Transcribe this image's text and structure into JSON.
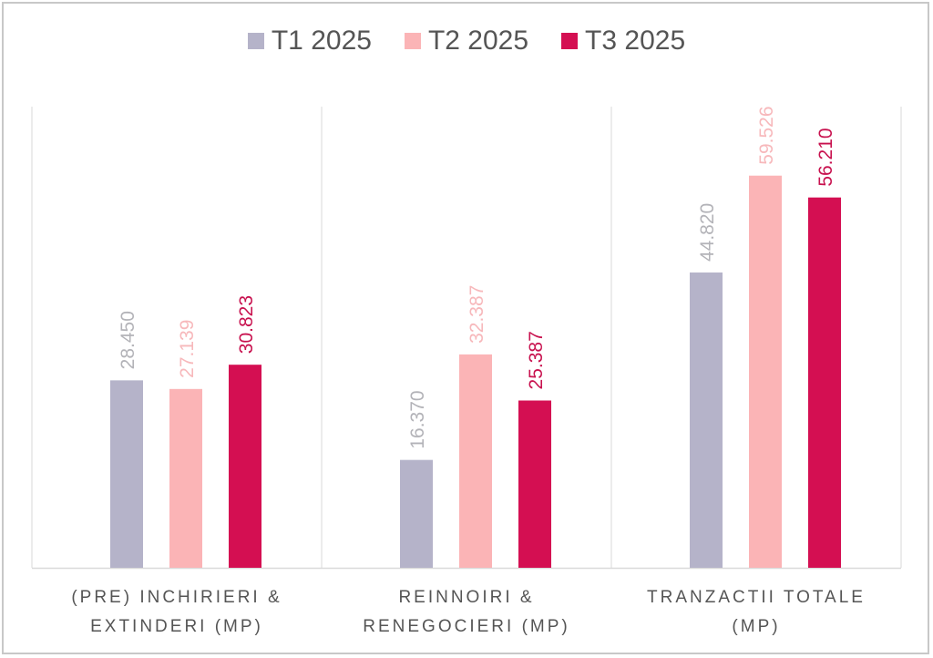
{
  "chart_data": {
    "type": "bar",
    "title": "",
    "xlabel": "",
    "ylabel": "",
    "ylim": [
      0,
      70
    ],
    "grid": false,
    "legend_position": "top-center",
    "categories": [
      "(PRE) INCHIRIERI & EXTINDERI (MP)",
      "REINNOIRI & RENEGOCIERI (MP)",
      "TRANZACTII TOTALE (MP)"
    ],
    "category_label_lines": [
      [
        "(PRE) INCHIRIERI &",
        "EXTINDERI (MP)"
      ],
      [
        "REINNOIRI &",
        "RENEGOCIERI (MP)"
      ],
      [
        "TRANZACTII TOTALE",
        "(MP)"
      ]
    ],
    "series": [
      {
        "name": "T1 2025",
        "color": "#b5b3c9",
        "label_color": "#b3b3b8",
        "values": [
          28.45,
          16.37,
          44.82
        ],
        "labels": [
          "28.450",
          "16.370",
          "44.820"
        ]
      },
      {
        "name": "T2 2025",
        "color": "#fbb4b6",
        "label_color": "#f7b8bb",
        "values": [
          27.139,
          32.387,
          59.526
        ],
        "labels": [
          "27.139",
          "32.387",
          "59.526"
        ]
      },
      {
        "name": "T3 2025",
        "color": "#d40f52",
        "label_color": "#c8124f",
        "values": [
          30.823,
          25.387,
          56.21
        ],
        "labels": [
          "30.823",
          "25.387",
          "56.210"
        ]
      }
    ]
  }
}
